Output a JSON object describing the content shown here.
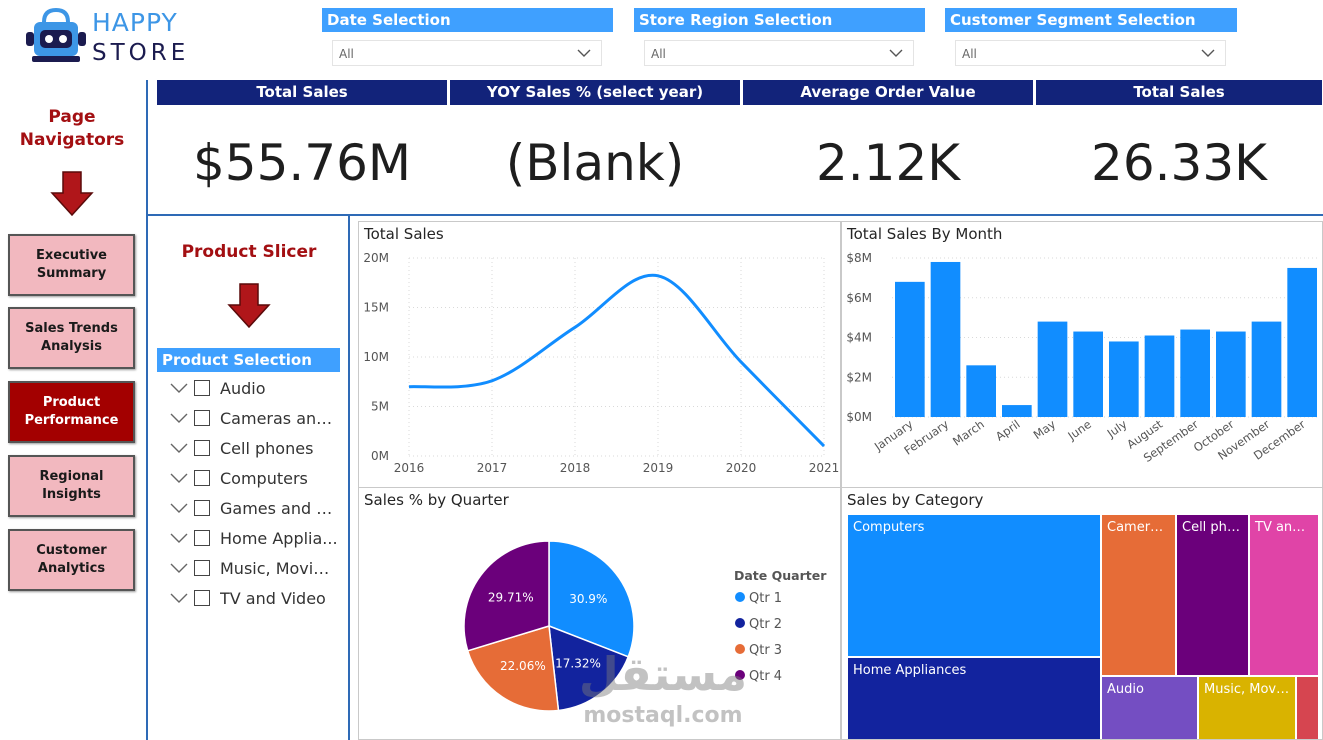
{
  "logo": {
    "top_text": "HAPPY",
    "bottom_text": "STORE"
  },
  "slicers": [
    {
      "title": "Date Selection",
      "value": "All"
    },
    {
      "title": "Store Region Selection",
      "value": "All"
    },
    {
      "title": "Customer Segment Selection",
      "value": "All"
    }
  ],
  "kpis": [
    {
      "label": "Total Sales",
      "value": "$55.76M"
    },
    {
      "label": "YOY Sales % (select year)",
      "value": "(Blank)"
    },
    {
      "label": "Average Order Value",
      "value": "2.12K"
    },
    {
      "label": "Total Sales",
      "value": "26.33K"
    }
  ],
  "navigator": {
    "title_line1": "Page",
    "title_line2": "Navigators",
    "items": [
      {
        "label": "Executive Summary",
        "active": false
      },
      {
        "label": "Sales Trends Analysis",
        "active": false
      },
      {
        "label": "Product Performance",
        "active": true
      },
      {
        "label": "Regional Insights",
        "active": false
      },
      {
        "label": "Customer Analytics",
        "active": false
      }
    ]
  },
  "product_slicer": {
    "title": "Product Slicer",
    "header": "Product Selection",
    "items": [
      "Audio",
      "Cameras and ...",
      "Cell phones",
      "Computers",
      "Games and T...",
      "Home Applia...",
      "Music, Movie...",
      "TV and Video"
    ]
  },
  "colors": {
    "accent": "#3fa0ff",
    "header_navy": "#12237a",
    "nav_pink": "#f2b8bf",
    "nav_active": "#a30000",
    "bar_blue": "#118dff"
  },
  "watermark": {
    "arabic": "مستقل",
    "latin": "mostaql.com"
  },
  "chart_data": [
    {
      "type": "line",
      "title": "Total Sales",
      "x": [
        2016,
        2017,
        2018,
        2019,
        2020,
        2021
      ],
      "series": [
        {
          "values": [
            7.0,
            7.6,
            13.0,
            18.2,
            9.5,
            1.0
          ]
        }
      ],
      "ylim": [
        0,
        20
      ],
      "yticks": [
        "0M",
        "5M",
        "10M",
        "15M",
        "20M"
      ],
      "xticks": [
        "2016",
        "2017",
        "2018",
        "2019",
        "2020",
        "2021"
      ],
      "grid": true
    },
    {
      "type": "bar",
      "title": "Total Sales By Month",
      "categories": [
        "January",
        "February",
        "March",
        "April",
        "May",
        "June",
        "July",
        "August",
        "September",
        "October",
        "November",
        "December"
      ],
      "values": [
        6.8,
        7.8,
        2.6,
        0.6,
        4.8,
        4.3,
        3.8,
        4.1,
        4.4,
        4.3,
        4.8,
        7.5
      ],
      "ylim": [
        0,
        8
      ],
      "yticks": [
        "$0M",
        "$2M",
        "$4M",
        "$6M",
        "$8M"
      ],
      "grid": true
    },
    {
      "type": "pie",
      "title": "Sales % by Quarter",
      "legend_title": "Date Quarter",
      "legend_position": "right",
      "labels": [
        "Qtr 1",
        "Qtr 2",
        "Qtr 3",
        "Qtr 4"
      ],
      "values": [
        30.9,
        17.32,
        22.06,
        29.71
      ],
      "display": [
        "30.9%",
        "17.32%",
        "22.06%",
        "29.71%"
      ],
      "colors": [
        "#118dff",
        "#12239e",
        "#e66c37",
        "#6b007b"
      ]
    },
    {
      "type": "treemap",
      "title": "Sales by Category",
      "tiles": [
        {
          "label": "Computers",
          "color": "#118dff"
        },
        {
          "label": "Home Appliances",
          "color": "#12239e"
        },
        {
          "label": "Cameras...",
          "color": "#e66c37"
        },
        {
          "label": "Cell pho...",
          "color": "#6b007b"
        },
        {
          "label": "TV and ...",
          "color": "#e044a7"
        },
        {
          "label": "Audio",
          "color": "#744ec2"
        },
        {
          "label": "Music, Movi...",
          "color": "#d9b300"
        },
        {
          "label": "",
          "color": "#d64550"
        }
      ]
    }
  ]
}
